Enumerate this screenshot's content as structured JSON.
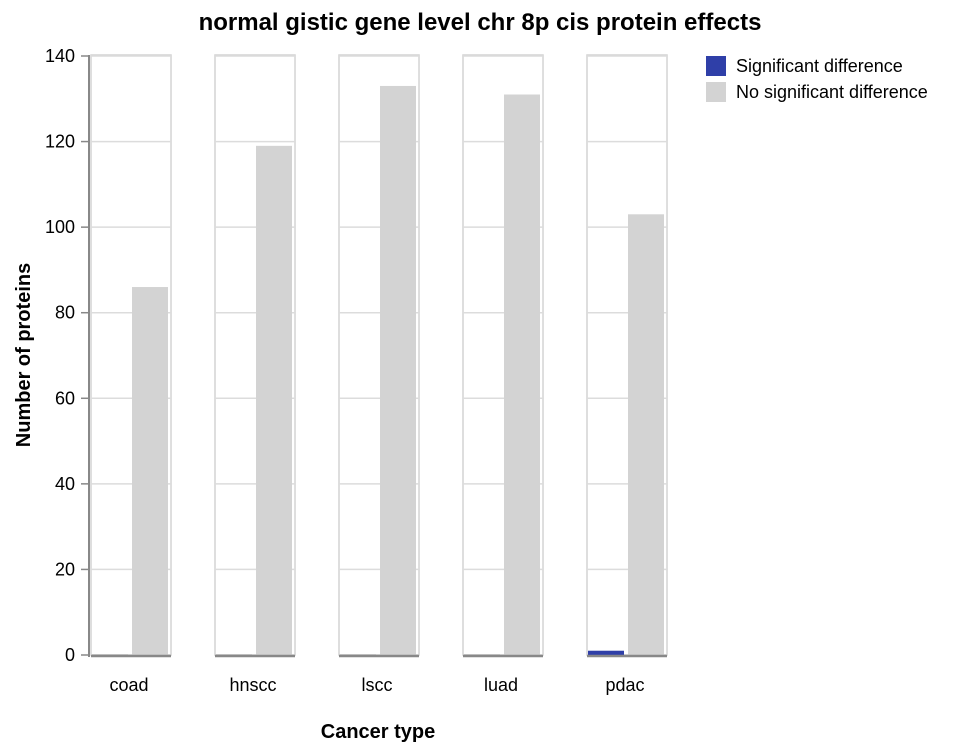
{
  "chart_data": {
    "type": "bar",
    "title": "normal gistic gene level chr 8p cis protein effects",
    "xlabel": "Cancer type",
    "ylabel": "Number of proteins",
    "ylim": [
      0,
      140
    ],
    "yticks": [
      "0",
      "20",
      "40",
      "60",
      "80",
      "100",
      "120",
      "140"
    ],
    "categories": [
      "coad",
      "hnscc",
      "lscc",
      "luad",
      "pdac"
    ],
    "series": [
      {
        "name": "Significant difference",
        "color": "#2f3fa8",
        "values": [
          0,
          0,
          0,
          0,
          1
        ]
      },
      {
        "name": "No significant difference",
        "color": "#d3d3d3",
        "values": [
          86,
          119,
          133,
          131,
          103
        ]
      }
    ],
    "grid": true,
    "legend_position": "top-right"
  }
}
